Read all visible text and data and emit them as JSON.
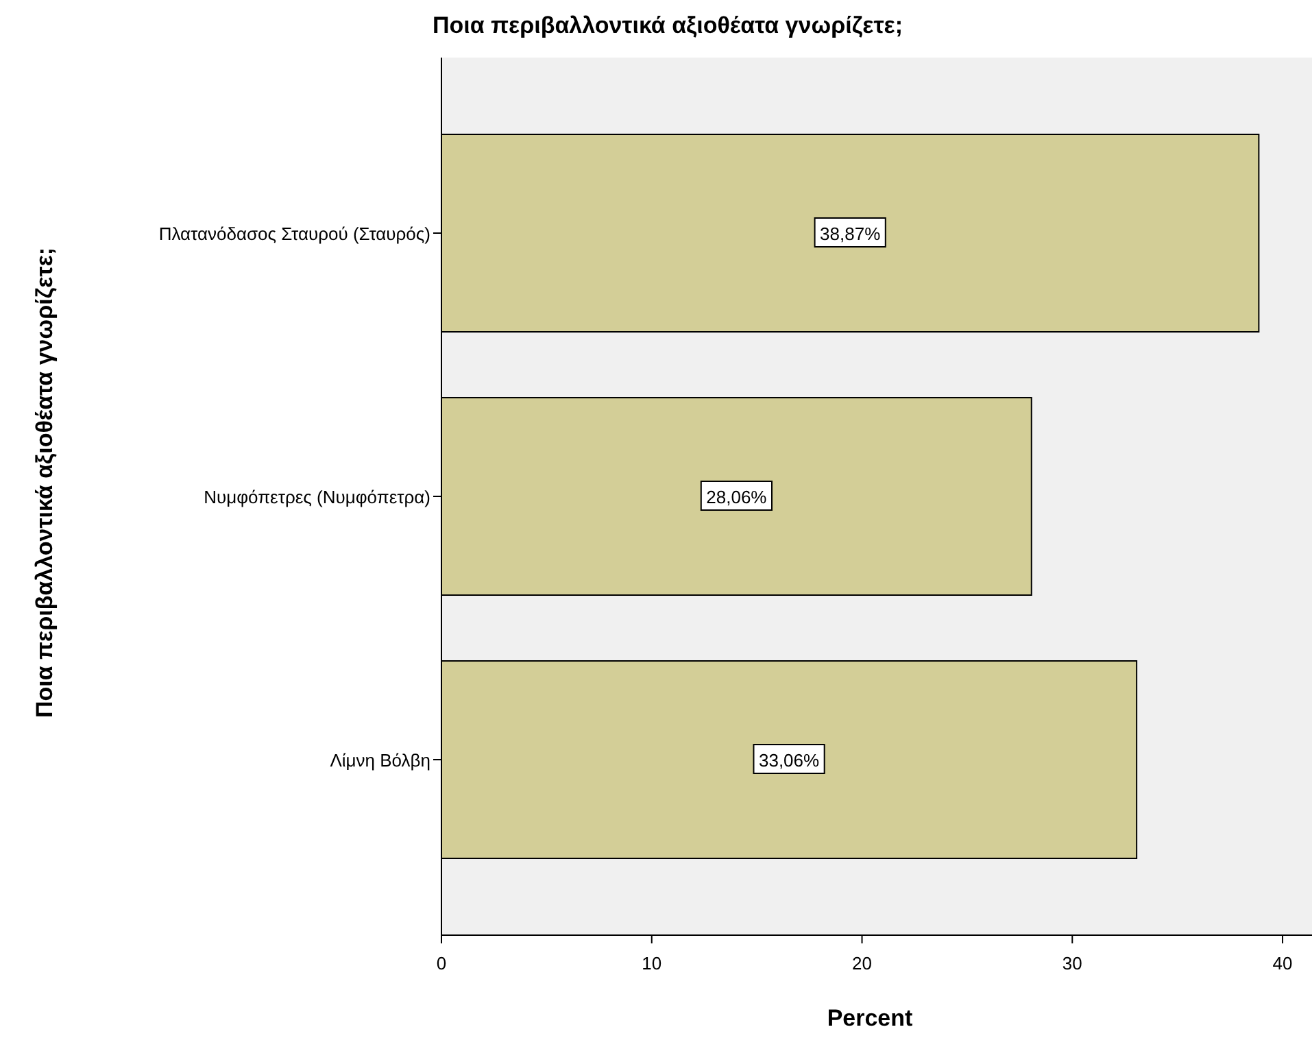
{
  "chart_data": {
    "type": "bar",
    "orientation": "horizontal",
    "title": "Ποια περιβαλλοντικά αξιοθέατα γνωρίζετε;",
    "xlabel": "Percent",
    "ylabel": "Ποια περιβαλλοντικά αξιοθέατα γνωρίζετε;",
    "categories": [
      "Πλατανόδασος Σταυρού (Σταυρός)",
      "Νυμφόπετρες (Νυμφόπετρα)",
      "Λίμνη Βόλβη"
    ],
    "values": [
      38.87,
      28.06,
      33.06
    ],
    "value_labels": [
      "38,87%",
      "28,06%",
      "33,06%"
    ],
    "color": "#d3ce97",
    "xlim": [
      0,
      41.4
    ],
    "xticks": [
      0,
      10,
      20,
      30,
      40
    ],
    "grid": false
  }
}
